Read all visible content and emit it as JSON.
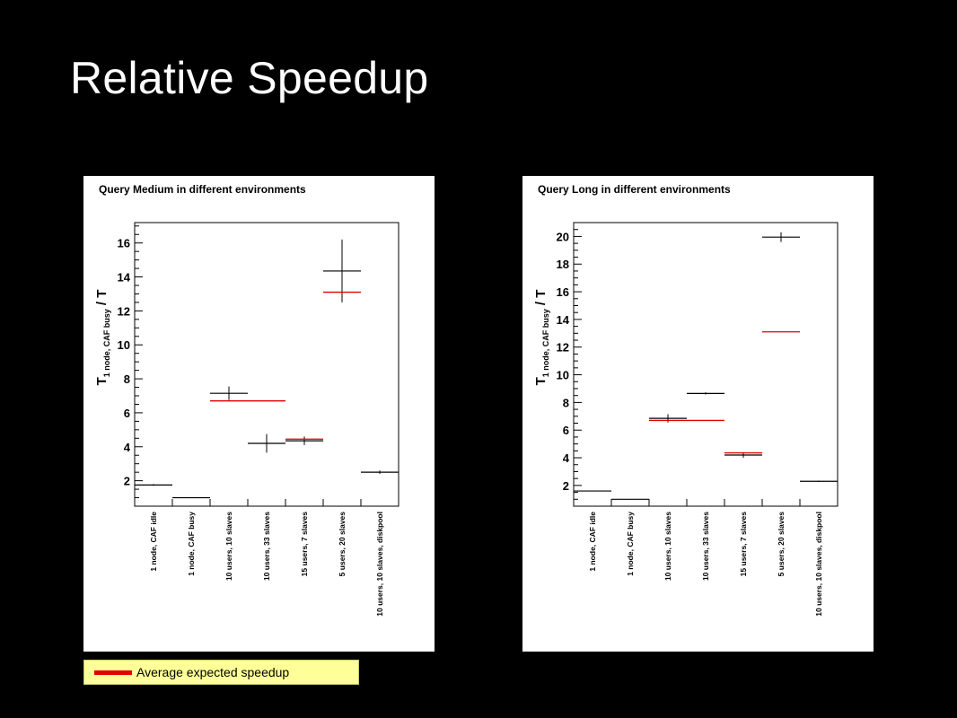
{
  "slide": {
    "title": "Relative Speedup"
  },
  "legend": {
    "label": "Average expected speedup",
    "color": "#e00000"
  },
  "colors": {
    "measured": "#000000",
    "expected": "#e00000",
    "background": "#000000",
    "panel": "#ffffff"
  },
  "chart_data": [
    {
      "type": "scatter",
      "title": "Query Medium in different environments",
      "ylabel_parts": [
        "T",
        "1 node, CAF busy",
        " / T"
      ],
      "xlabel": "",
      "categories": [
        "1 node, CAF idle",
        "1 node, CAF busy",
        "10 users, 10 slaves",
        "10 users, 33 slaves",
        "15 users, 7 slaves",
        "5 users, 20 slaves",
        "10 users, 10 slaves, diskpool"
      ],
      "ylim": [
        0.5,
        17.2
      ],
      "yticks": [
        2,
        4,
        6,
        8,
        10,
        12,
        14,
        16
      ],
      "grid": false,
      "series": [
        {
          "name": "",
          "values": [
            1.75,
            1.0,
            7.15,
            4.2,
            4.35,
            14.35,
            2.5
          ],
          "errors": [
            0.05,
            0.02,
            0.4,
            0.55,
            0.25,
            1.85,
            0.1
          ],
          "color": "#000000"
        },
        {
          "name": "Average expected speedup",
          "values": [
            null,
            null,
            6.7,
            6.7,
            4.45,
            13.1,
            null
          ],
          "color": "#e00000"
        }
      ]
    },
    {
      "type": "scatter",
      "title": "Query Long in different environments",
      "ylabel_parts": [
        "T",
        "1 node, CAF busy",
        " / T"
      ],
      "xlabel": "",
      "categories": [
        "1 node, CAF idle",
        "1 node, CAF busy",
        "10 users, 10 slaves",
        "10 users, 33 slaves",
        "15 users, 7 slaves",
        "5 users, 20 slaves",
        "10 users, 10 slaves, diskpool"
      ],
      "ylim": [
        0.5,
        21.0
      ],
      "yticks": [
        2,
        4,
        6,
        8,
        10,
        12,
        14,
        16,
        18,
        20
      ],
      "grid": false,
      "series": [
        {
          "name": "",
          "values": [
            1.6,
            1.0,
            6.85,
            8.65,
            4.2,
            19.95,
            2.3
          ],
          "errors": [
            0.02,
            0.02,
            0.3,
            0.08,
            0.2,
            0.35,
            0.05
          ],
          "color": "#000000"
        },
        {
          "name": "Average expected speedup",
          "values": [
            null,
            null,
            6.7,
            6.7,
            4.35,
            13.1,
            null
          ],
          "color": "#e00000"
        }
      ]
    }
  ]
}
